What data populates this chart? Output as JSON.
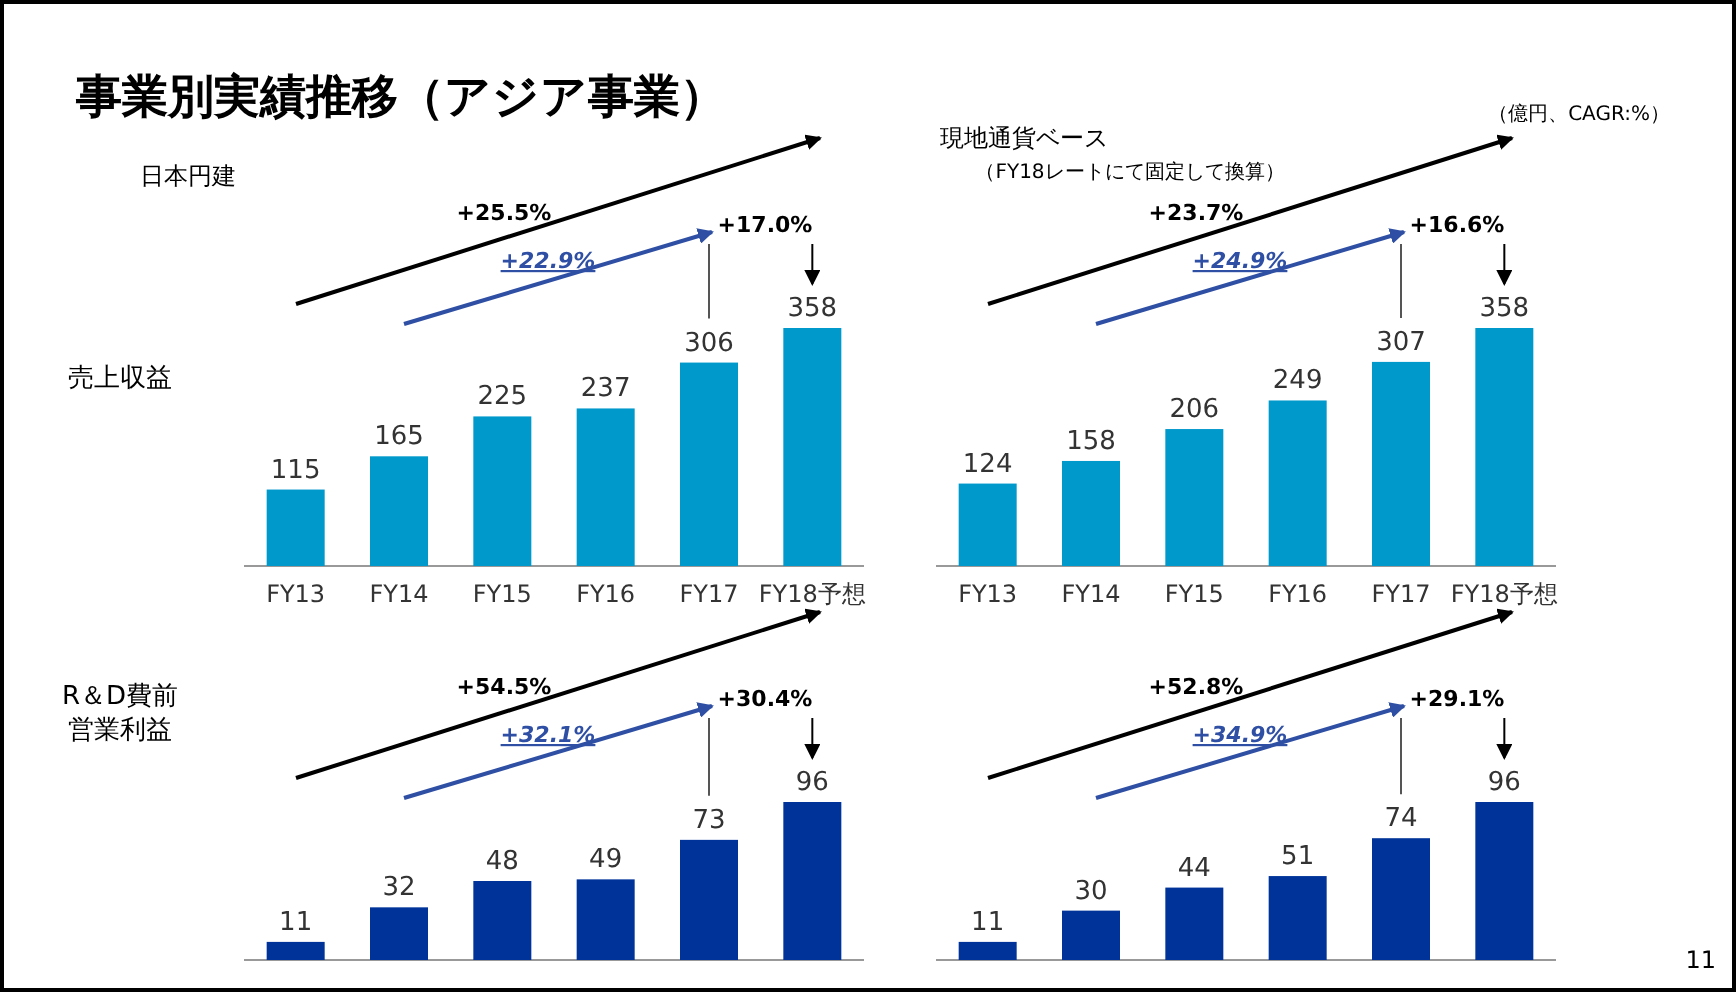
{
  "chart_data": [
    {
      "type": "bar",
      "title": "事業別実績推移（アジア事業）",
      "subtitle": "日本円建",
      "ylabel": "売上収益",
      "categories": [
        "FY13",
        "FY14",
        "FY15",
        "FY16",
        "FY17",
        "FY18予想"
      ],
      "values": [
        115,
        165,
        225,
        237,
        306,
        358
      ],
      "color": "#0099cc",
      "data_labels": true,
      "annotations": [
        "+25.5%",
        "+22.9%",
        "+17.0%"
      ]
    },
    {
      "type": "bar",
      "subtitle": "現地通貨ベース",
      "categories": [
        "FY13",
        "FY14",
        "FY15",
        "FY16",
        "FY17",
        "FY18予想"
      ],
      "values": [
        124,
        158,
        206,
        249,
        307,
        358
      ],
      "color": "#0099cc",
      "data_labels": true,
      "annotations": [
        "+23.7%",
        "+24.9%",
        "+16.6%",
        "（FY18レートにて固定して換算）",
        "（億円、CAGR:%）"
      ]
    },
    {
      "type": "bar",
      "ylabel": "R＆D費前営業利益",
      "categories": [
        null,
        null,
        null,
        null,
        null,
        null
      ],
      "values": [
        11,
        32,
        48,
        49,
        73,
        96
      ],
      "color": "#003399",
      "data_labels": true,
      "annotations": [
        "+54.5%",
        "+32.1%",
        "+30.4%"
      ]
    },
    {
      "type": "bar",
      "categories": [
        null,
        null,
        null,
        null,
        null,
        null
      ],
      "values": [
        11,
        30,
        44,
        51,
        74,
        96
      ],
      "color": "#003399",
      "data_labels": true,
      "annotations": [
        "+52.8%",
        "+34.9%",
        "+29.1%",
        "11"
      ]
    }
  ]
}
